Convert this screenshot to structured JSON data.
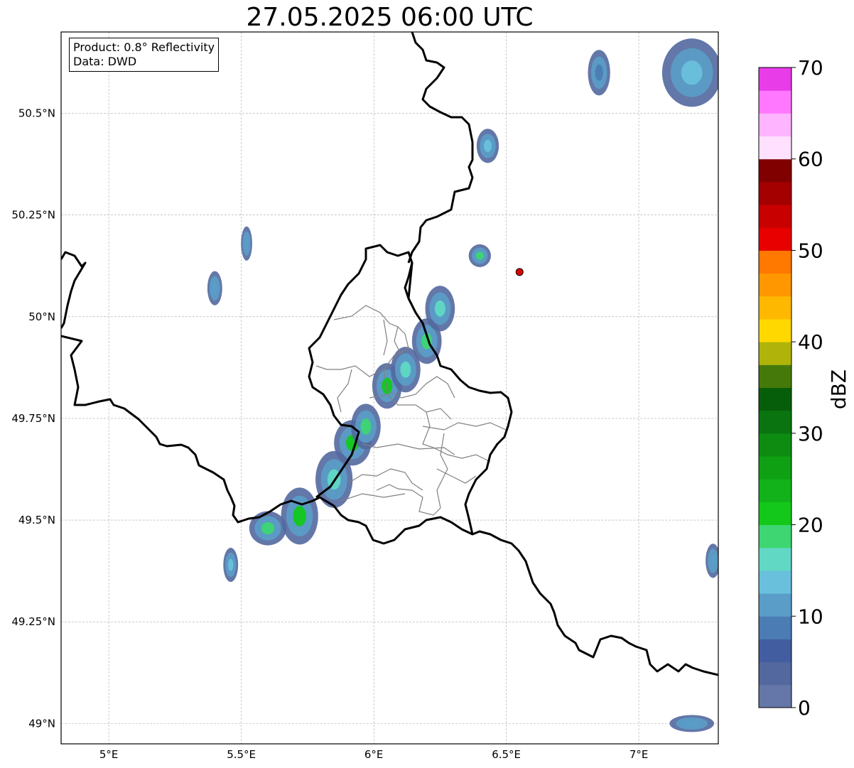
{
  "title": "27.05.2025 06:00 UTC",
  "info": {
    "product": "Product: 0.8° Reflectivity",
    "data_source": "Data: DWD"
  },
  "map": {
    "extent": {
      "lon_min": 4.82,
      "lon_max": 7.3,
      "lat_min": 48.95,
      "lat_max": 50.7
    },
    "lon_ticks": [
      5.0,
      5.5,
      6.0,
      6.5,
      7.0
    ],
    "lon_tick_labels": [
      "5°E",
      "5.5°E",
      "6°E",
      "6.5°E",
      "7°E"
    ],
    "lat_ticks": [
      49.0,
      49.25,
      49.5,
      49.75,
      50.0,
      50.25,
      50.5
    ],
    "lat_tick_labels": [
      "49°N",
      "49.25°N",
      "49.5°N",
      "49.75°N",
      "50°N",
      "50.25°N",
      "50.5°N"
    ],
    "radar_site": {
      "lon": 6.55,
      "lat": 50.11,
      "color": "#e00000"
    },
    "echo_cells": [
      {
        "lon": 5.6,
        "lat": 49.48,
        "rx": 0.05,
        "ry": 0.03,
        "dbz": 18
      },
      {
        "lon": 5.72,
        "lat": 49.51,
        "rx": 0.05,
        "ry": 0.05,
        "dbz": 20
      },
      {
        "lon": 5.85,
        "lat": 49.6,
        "rx": 0.05,
        "ry": 0.05,
        "dbz": 17
      },
      {
        "lon": 5.92,
        "lat": 49.69,
        "rx": 0.05,
        "ry": 0.04,
        "dbz": 22
      },
      {
        "lon": 5.97,
        "lat": 49.73,
        "rx": 0.04,
        "ry": 0.04,
        "dbz": 19
      },
      {
        "lon": 6.05,
        "lat": 49.83,
        "rx": 0.04,
        "ry": 0.04,
        "dbz": 20
      },
      {
        "lon": 6.12,
        "lat": 49.87,
        "rx": 0.04,
        "ry": 0.04,
        "dbz": 16
      },
      {
        "lon": 6.2,
        "lat": 49.94,
        "rx": 0.04,
        "ry": 0.04,
        "dbz": 18
      },
      {
        "lon": 6.25,
        "lat": 50.02,
        "rx": 0.04,
        "ry": 0.04,
        "dbz": 17
      },
      {
        "lon": 6.43,
        "lat": 50.42,
        "rx": 0.03,
        "ry": 0.03,
        "dbz": 14
      },
      {
        "lon": 6.4,
        "lat": 50.15,
        "rx": 0.03,
        "ry": 0.02,
        "dbz": 18
      },
      {
        "lon": 5.46,
        "lat": 49.39,
        "rx": 0.02,
        "ry": 0.03,
        "dbz": 13
      },
      {
        "lon": 5.4,
        "lat": 50.07,
        "rx": 0.02,
        "ry": 0.03,
        "dbz": 10
      },
      {
        "lon": 5.52,
        "lat": 50.18,
        "rx": 0.015,
        "ry": 0.03,
        "dbz": 12
      },
      {
        "lon": 7.2,
        "lat": 50.6,
        "rx": 0.08,
        "ry": 0.06,
        "dbz": 14
      },
      {
        "lon": 6.85,
        "lat": 50.6,
        "rx": 0.03,
        "ry": 0.04,
        "dbz": 9
      },
      {
        "lon": 7.28,
        "lat": 49.4,
        "rx": 0.02,
        "ry": 0.03,
        "dbz": 12
      },
      {
        "lon": 7.2,
        "lat": 49.0,
        "rx": 0.06,
        "ry": 0.015,
        "dbz": 12
      }
    ]
  },
  "colorbar": {
    "label": "dBZ",
    "min": 0,
    "max": 70,
    "step": 2.5,
    "tick_values": [
      0,
      10,
      20,
      30,
      40,
      50,
      60,
      70
    ],
    "tick_labels": [
      "0",
      "10",
      "20",
      "30",
      "40",
      "50",
      "60",
      "70"
    ],
    "colors": [
      "#6577a8",
      "#52689e",
      "#425ea0",
      "#4b7cb3",
      "#5a9dc8",
      "#69c0dc",
      "#60d8c4",
      "#3dd672",
      "#13c81a",
      "#12b21a",
      "#10a014",
      "#0e8c12",
      "#0a7510",
      "#075e0a",
      "#457a0a",
      "#b0b40a",
      "#ffd800",
      "#ffb800",
      "#ff9800",
      "#ff7800",
      "#e80000",
      "#c80000",
      "#a40000",
      "#800000",
      "#ffe0ff",
      "#ffb4ff",
      "#ff78ff",
      "#e83ce8"
    ]
  }
}
